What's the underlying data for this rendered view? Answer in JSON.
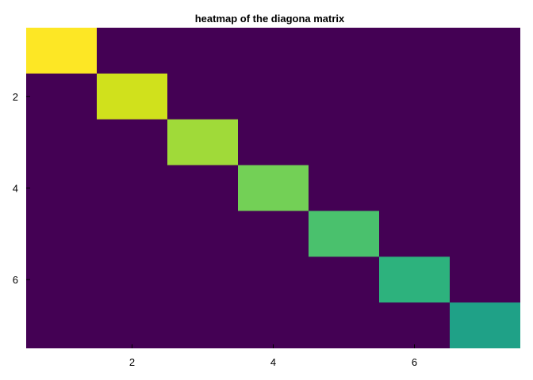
{
  "chart_data": {
    "type": "heatmap",
    "title": "heatmap of the diagona matrix",
    "xlabel": "",
    "ylabel": "",
    "rows": 7,
    "cols": 7,
    "x_ticks": [
      2,
      4,
      6
    ],
    "y_ticks": [
      2,
      4,
      6
    ],
    "xlim": [
      0.5,
      7.5
    ],
    "ylim": [
      0.5,
      7.5
    ],
    "y_axis_inverted": true,
    "grid": false,
    "colormap": "viridis",
    "background_color": "#440154",
    "cells": [
      {
        "row": 1,
        "col": 1,
        "value": 7,
        "color": "#fde725"
      },
      {
        "row": 2,
        "col": 2,
        "value": 6,
        "color": "#d0e11c"
      },
      {
        "row": 3,
        "col": 3,
        "value": 5,
        "color": "#a0da39"
      },
      {
        "row": 4,
        "col": 4,
        "value": 4,
        "color": "#73d056"
      },
      {
        "row": 5,
        "col": 5,
        "value": 3,
        "color": "#4ac16d"
      },
      {
        "row": 6,
        "col": 6,
        "value": 2,
        "color": "#2db27d"
      },
      {
        "row": 7,
        "col": 7,
        "value": 1,
        "color": "#1fa187"
      }
    ]
  }
}
